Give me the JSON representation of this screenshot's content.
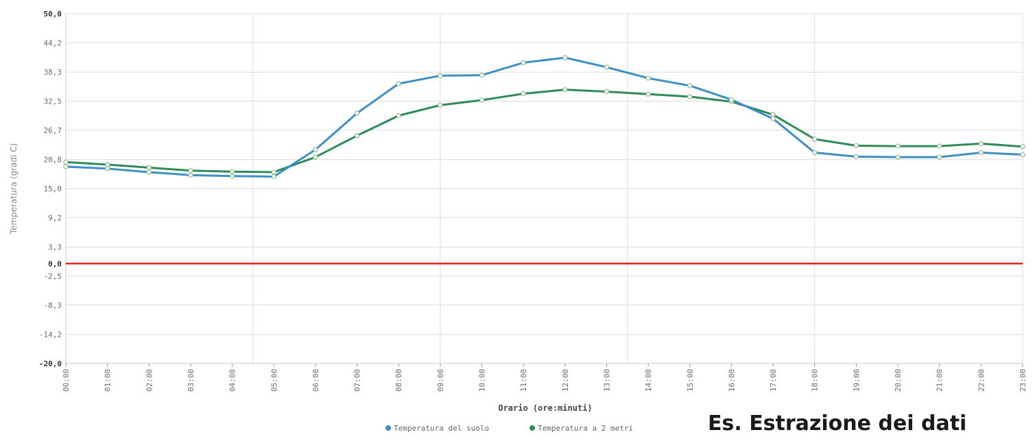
{
  "chart_data": {
    "type": "line",
    "title": "",
    "xlabel": "Orario (ore:minuti)",
    "ylabel": "Temperatura (gradi C)",
    "ylim": [
      -20.0,
      50.0
    ],
    "yticks": [
      "50,0",
      "44,2",
      "38,3",
      "32,5",
      "26,7",
      "20,8",
      "15,0",
      "9,2",
      "3,3",
      "0,0",
      "-2,5",
      "-8,3",
      "-14,2",
      "-20,0"
    ],
    "ytick_values": [
      50.0,
      44.2,
      38.3,
      32.5,
      26.7,
      20.8,
      15.0,
      9.2,
      3.3,
      0.0,
      -2.5,
      -8.3,
      -14.2,
      -20.0
    ],
    "categories": [
      "00:00",
      "01:00",
      "02:00",
      "03:00",
      "04:00",
      "05:00",
      "06:00",
      "07:00",
      "08:00",
      "09:00",
      "10:00",
      "11:00",
      "12:00",
      "13:00",
      "14:00",
      "15:00",
      "16:00",
      "17:00",
      "18:00",
      "19:00",
      "20:00",
      "21:00",
      "22:00",
      "23:00"
    ],
    "series": [
      {
        "name": "Temperatura del suolo",
        "color": "#3d8fc6",
        "values": [
          19.4,
          19.0,
          18.3,
          17.7,
          17.5,
          17.4,
          22.8,
          30.1,
          36.0,
          37.6,
          37.7,
          40.2,
          41.2,
          39.3,
          37.1,
          35.6,
          32.8,
          29.0,
          22.2,
          21.4,
          21.3,
          21.3,
          22.2,
          21.8
        ]
      },
      {
        "name": "Temperatura a 2 metri",
        "color": "#2e8b57",
        "values": [
          20.3,
          19.8,
          19.2,
          18.6,
          18.4,
          18.3,
          21.3,
          25.6,
          29.6,
          31.7,
          32.7,
          34.0,
          34.8,
          34.4,
          33.9,
          33.4,
          32.4,
          29.8,
          24.9,
          23.6,
          23.5,
          23.5,
          24.0,
          23.4
        ]
      }
    ],
    "zero_line_color": "#e8231e",
    "grid": true,
    "legend_position": "bottom-center"
  },
  "caption": "Es. Estrazione dei dati"
}
